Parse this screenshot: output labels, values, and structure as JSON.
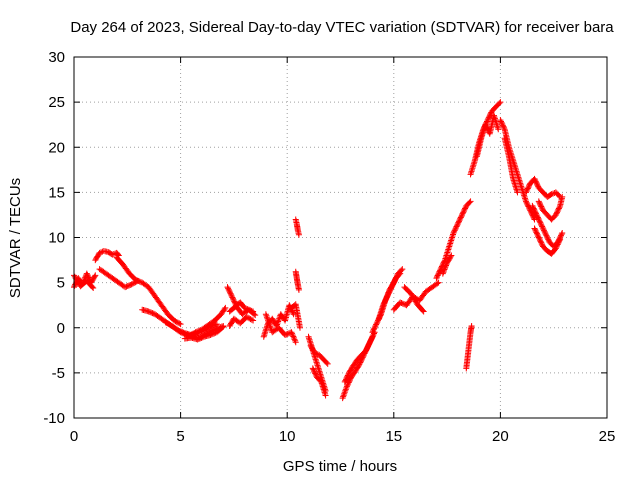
{
  "chart_data": {
    "type": "scatter",
    "title": "Day 264 of 2023, Sidereal Day-to-day VTEC variation (SDTVAR) for receiver bara",
    "xlabel": "GPS time / hours",
    "ylabel": "SDTVAR / TECUs",
    "xlim": [
      0,
      25
    ],
    "ylim": [
      -10,
      30
    ],
    "xticks": [
      0,
      5,
      10,
      15,
      20,
      25
    ],
    "yticks": [
      -10,
      -5,
      0,
      5,
      10,
      15,
      20,
      25,
      30
    ],
    "grid": true,
    "marker": "+",
    "marker_color": "#ff0000",
    "grid_color": "#a0a0a0",
    "axis_color": "#000000",
    "series": [
      {
        "name": "SDTVAR",
        "segments": [
          {
            "x": [
              0.0,
              0.2,
              0.4,
              0.6,
              0.8,
              1.0
            ],
            "y": [
              4.5,
              5.5,
              4.8,
              6.0,
              5.0,
              5.8
            ]
          },
          {
            "x": [
              0.0,
              0.3,
              0.6,
              0.9
            ],
            "y": [
              5.8,
              4.6,
              5.2,
              4.4
            ]
          },
          {
            "x": [
              1.0,
              1.2,
              1.4,
              1.6,
              1.8,
              2.0,
              2.1
            ],
            "y": [
              7.5,
              8.3,
              8.5,
              8.4,
              8.1,
              8.3,
              8.0
            ]
          },
          {
            "x": [
              1.2,
              1.5,
              1.8,
              2.1,
              2.4,
              2.7,
              3.0
            ],
            "y": [
              6.5,
              6.0,
              5.5,
              5.0,
              4.5,
              4.8,
              5.2
            ]
          },
          {
            "x": [
              2.0,
              2.3,
              2.6,
              2.9,
              3.2,
              3.5,
              3.8,
              4.1,
              4.4,
              4.7,
              5.0
            ],
            "y": [
              7.8,
              7.0,
              6.0,
              5.3,
              5.0,
              4.5,
              3.5,
              2.5,
              1.5,
              0.8,
              0.4
            ]
          },
          {
            "x": [
              3.2,
              3.5,
              3.8,
              4.1,
              4.4,
              4.7,
              5.0,
              5.3,
              5.6,
              5.9,
              6.2,
              6.5,
              6.8,
              7.0
            ],
            "y": [
              2.0,
              1.8,
              1.5,
              1.0,
              0.5,
              0.0,
              -0.5,
              -0.8,
              -1.0,
              -1.1,
              -0.7,
              -0.3,
              0.0,
              0.2
            ]
          },
          {
            "x": [
              4.3,
              4.6,
              4.9,
              5.2,
              5.5,
              5.8,
              6.1,
              6.4,
              6.7
            ],
            "y": [
              0.6,
              0.2,
              -0.3,
              -0.6,
              -0.8,
              -0.6,
              -0.3,
              0.1,
              0.4
            ]
          },
          {
            "x": [
              5.4,
              5.7,
              6.0,
              6.3,
              6.6,
              6.9,
              7.1
            ],
            "y": [
              -0.9,
              -0.5,
              -0.2,
              0.3,
              0.8,
              1.5,
              2.2
            ]
          },
          {
            "x": [
              5.2,
              5.5,
              5.8,
              6.1,
              6.4,
              6.7,
              7.0
            ],
            "y": [
              -1.2,
              -1.1,
              -1.3,
              -1.0,
              -0.8,
              -0.5,
              0.1
            ]
          },
          {
            "x": [
              7.2,
              7.4,
              7.6,
              7.8,
              8.0,
              8.2,
              8.4
            ],
            "y": [
              4.5,
              3.5,
              2.5,
              2.8,
              2.2,
              2.0,
              1.8
            ]
          },
          {
            "x": [
              7.3,
              7.6,
              7.9,
              8.2,
              8.5
            ],
            "y": [
              1.8,
              2.4,
              1.5,
              2.0,
              1.4
            ]
          },
          {
            "x": [
              7.3,
              7.5,
              7.8,
              8.1,
              8.4
            ],
            "y": [
              0.2,
              1.0,
              0.5,
              1.2,
              0.8
            ]
          },
          {
            "x": [
              8.9,
              9.1,
              9.3,
              9.5,
              9.7,
              9.9,
              10.1,
              10.3
            ],
            "y": [
              -1.0,
              0.5,
              1.0,
              0.2,
              1.5,
              0.8,
              2.5,
              1.5
            ]
          },
          {
            "x": [
              9.0,
              9.3,
              9.6,
              9.9,
              10.2,
              10.4
            ],
            "y": [
              1.5,
              -0.5,
              0.0,
              -0.8,
              -0.5,
              -1.6
            ]
          },
          {
            "x": [
              10.4,
              10.45,
              10.5,
              10.55
            ],
            "y": [
              12.0,
              11.5,
              10.8,
              10.3
            ]
          },
          {
            "x": [
              10.4,
              10.45,
              10.5,
              10.55
            ],
            "y": [
              6.2,
              5.5,
              4.8,
              4.2
            ]
          },
          {
            "x": [
              10.2,
              10.4,
              10.6
            ],
            "y": [
              2.2,
              2.6,
              0.0
            ]
          },
          {
            "x": [
              11.0,
              11.2,
              11.4,
              11.6,
              11.8
            ],
            "y": [
              -1.0,
              -2.5,
              -4.0,
              -5.5,
              -7.0
            ]
          },
          {
            "x": [
              11.1,
              11.3,
              11.5,
              11.7,
              11.9
            ],
            "y": [
              -2.0,
              -2.8,
              -3.0,
              -3.5,
              -4.0
            ]
          },
          {
            "x": [
              11.2,
              11.4,
              11.6,
              11.8
            ],
            "y": [
              -4.5,
              -5.5,
              -6.0,
              -7.5
            ]
          },
          {
            "x": [
              12.6,
              12.8,
              13.0,
              13.2,
              13.4,
              13.6,
              13.8,
              14.0
            ],
            "y": [
              -7.8,
              -6.5,
              -5.5,
              -4.8,
              -4.0,
              -3.0,
              -2.0,
              -1.0
            ]
          },
          {
            "x": [
              12.7,
              12.9,
              13.1,
              13.3,
              13.5,
              13.7,
              13.9,
              14.1
            ],
            "y": [
              -6.0,
              -5.0,
              -4.2,
              -3.5,
              -3.0,
              -2.5,
              -1.5,
              -0.5
            ]
          },
          {
            "x": [
              14.0,
              14.2,
              14.4,
              14.6,
              14.8,
              15.0,
              15.2,
              15.4
            ],
            "y": [
              -0.5,
              0.5,
              1.5,
              3.0,
              4.2,
              5.0,
              6.0,
              6.5
            ]
          },
          {
            "x": [
              14.3,
              14.5,
              14.7,
              14.9,
              15.1,
              15.3
            ],
            "y": [
              1.0,
              2.5,
              3.5,
              4.5,
              5.5,
              6.0
            ]
          },
          {
            "x": [
              15.0,
              15.3,
              15.6,
              15.9,
              16.2,
              16.5,
              16.8,
              17.1
            ],
            "y": [
              2.0,
              2.8,
              2.5,
              3.5,
              3.0,
              4.0,
              4.5,
              5.0
            ]
          },
          {
            "x": [
              15.5,
              15.8,
              16.1,
              16.4
            ],
            "y": [
              4.5,
              3.8,
              2.6,
              1.8
            ]
          },
          {
            "x": [
              17.0,
              17.2,
              17.4,
              17.6,
              17.8,
              18.0,
              18.2,
              18.4,
              18.6
            ],
            "y": [
              5.5,
              6.5,
              7.5,
              9.0,
              10.5,
              11.5,
              12.5,
              13.5,
              14.0
            ]
          },
          {
            "x": [
              17.3,
              17.5,
              17.7
            ],
            "y": [
              6.0,
              7.2,
              8.0
            ]
          },
          {
            "x": [
              18.4,
              18.45,
              18.5,
              18.55,
              18.6,
              18.65
            ],
            "y": [
              -4.5,
              -3.5,
              -2.5,
              -1.5,
              -0.5,
              0.2
            ]
          },
          {
            "x": [
              18.6,
              18.8,
              19.0,
              19.2,
              19.4,
              19.6,
              19.8,
              20.0
            ],
            "y": [
              17.0,
              18.5,
              20.5,
              22.0,
              23.0,
              24.0,
              24.5,
              25.0
            ]
          },
          {
            "x": [
              18.9,
              19.1,
              19.3,
              19.5,
              19.7,
              19.9
            ],
            "y": [
              19.0,
              21.0,
              22.5,
              21.5,
              23.5,
              22.0
            ]
          },
          {
            "x": [
              20.0,
              20.2,
              20.4,
              20.6,
              20.8,
              21.0,
              21.2,
              21.4,
              21.6
            ],
            "y": [
              23.0,
              22.0,
              20.0,
              18.5,
              17.0,
              15.5,
              14.0,
              13.0,
              12.0
            ]
          },
          {
            "x": [
              20.2,
              20.4,
              20.6,
              20.8
            ],
            "y": [
              21.0,
              19.0,
              16.5,
              15.0
            ]
          },
          {
            "x": [
              21.2,
              21.4,
              21.6,
              21.8,
              22.0,
              22.2,
              22.4,
              22.6,
              22.8
            ],
            "y": [
              15.0,
              16.0,
              16.5,
              15.5,
              15.0,
              14.5,
              14.8,
              15.0,
              14.5
            ]
          },
          {
            "x": [
              21.5,
              21.7,
              21.9,
              22.1,
              22.3,
              22.5,
              22.7,
              22.9
            ],
            "y": [
              13.5,
              12.5,
              11.5,
              10.5,
              9.5,
              9.0,
              9.5,
              10.5
            ]
          },
          {
            "x": [
              21.6,
              21.8,
              22.0,
              22.2,
              22.4,
              22.6,
              22.8
            ],
            "y": [
              11.0,
              10.0,
              9.0,
              8.5,
              8.2,
              8.8,
              9.8
            ]
          },
          {
            "x": [
              21.8,
              22.0,
              22.2,
              22.4,
              22.6,
              22.8,
              22.9
            ],
            "y": [
              14.0,
              13.0,
              12.5,
              12.0,
              12.5,
              13.5,
              14.5
            ]
          }
        ]
      }
    ]
  }
}
